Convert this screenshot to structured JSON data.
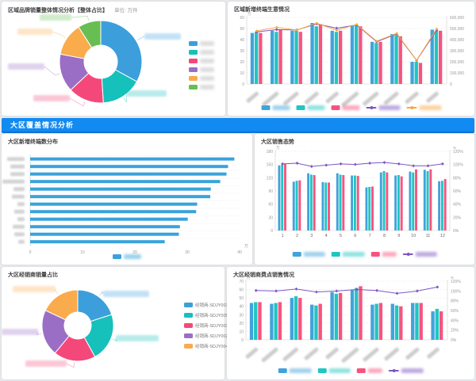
{
  "banner": {
    "title": "大区覆盖情况分析",
    "color": "#118af1"
  },
  "panels": {
    "top_left": {
      "title": "区域品牌销量整体情况分析【整体占比】",
      "unit": "单位: 万件"
    },
    "top_right": {
      "title": "区域新增终端生意情况"
    },
    "mid_left": {
      "title": "大区新增终端数分布"
    },
    "mid_right": {
      "title": "大区销售态势"
    },
    "bottom_left": {
      "title": "大区经销商销量占比"
    },
    "bottom_right": {
      "title": "大区经销商费点销售情况"
    }
  },
  "chart_data": [
    {
      "type": "pie",
      "panel": "top_left",
      "title": "区域品牌销量整体情况分析【整体占比】",
      "unit": "万件",
      "inner_radius_ratio": 0.4,
      "legend_position": "right",
      "labels_redacted": true,
      "legend_redacted": true,
      "slices": [
        {
          "label": "",
          "value": 33,
          "color": "#3c9fdb"
        },
        {
          "label": "",
          "value": 16,
          "color": "#16c0bb"
        },
        {
          "label": "",
          "value": 14,
          "color": "#f4487b"
        },
        {
          "label": "",
          "value": 15,
          "color": "#9a6ec5"
        },
        {
          "label": "",
          "value": 13,
          "color": "#faab4c"
        },
        {
          "label": "",
          "value": 9,
          "color": "#68be52"
        }
      ]
    },
    {
      "type": "bar-line",
      "panel": "top_right",
      "title": "区域新增终端生意情况",
      "categories": [
        "",
        "",
        "",
        "",
        "",
        "",
        "",
        "",
        "",
        ""
      ],
      "categories_redacted": true,
      "legend_redacted": true,
      "left_axis": {
        "min": 0,
        "max": 60,
        "step": 10,
        "unit": "万"
      },
      "right_axis": {
        "min": 0,
        "max": 600000,
        "step": 100000,
        "format": "number"
      },
      "bar_series": [
        {
          "name": "新增家数",
          "color": "#41a3dc",
          "values": [
            46,
            48,
            48,
            55,
            48,
            53,
            38,
            45,
            20,
            49
          ]
        },
        {
          "name": "动销家数",
          "color": "#1fc6c2",
          "values": [
            47,
            47,
            48,
            52,
            47,
            53,
            37,
            44,
            20,
            48
          ]
        },
        {
          "name": "上柜家数",
          "color": "#f8537f",
          "values": [
            46,
            49,
            47,
            54,
            48,
            52,
            38,
            43,
            19,
            48
          ]
        }
      ],
      "line_series": [
        {
          "name": "日均销售额",
          "color": "#7e57c2",
          "axis": "right",
          "marker": "diamond",
          "values": [
            470000,
            490000,
            487000,
            542000,
            503000,
            532000,
            381000,
            451000,
            212000,
            485000
          ]
        },
        {
          "name": "月均销售额",
          "color": "#fba73f",
          "axis": "right",
          "marker": "circle",
          "values": [
            479000,
            511000,
            486000,
            548000,
            484000,
            537000,
            386000,
            456000,
            214000,
            497000
          ]
        }
      ]
    },
    {
      "type": "hbar",
      "panel": "mid_left",
      "title": "大区新增终端数分布",
      "categories": [
        "",
        "",
        "",
        "",
        "",
        "",
        "",
        "",
        "",
        "",
        "",
        ""
      ],
      "categories_redacted": true,
      "legend_redacted": true,
      "x_axis": {
        "min": 0,
        "max": 40,
        "step": 10,
        "unit": "万"
      },
      "series": [
        {
          "name": "新增终端",
          "color": "#38a3dc",
          "values": [
            39,
            37.8,
            37.5,
            36.3,
            34.5,
            34.4,
            31.9,
            31.7,
            30.1,
            28.6,
            28.4,
            25.7
          ]
        }
      ]
    },
    {
      "type": "bar-line",
      "panel": "mid_right",
      "title": "大区销售态势",
      "categories": [
        "1",
        "2",
        "3",
        "4",
        "5",
        "6",
        "7",
        "8",
        "9",
        "10",
        "11",
        "12"
      ],
      "categories_redacted": false,
      "legend_redacted": true,
      "left_axis": {
        "min": 0,
        "max": 180,
        "step": 30,
        "unit": "万"
      },
      "right_axis": {
        "min": 0,
        "max": 120,
        "step": 20,
        "format": "percent",
        "unit": "%"
      },
      "bar_series": [
        {
          "name": "目标销售额",
          "color": "#41a3dc",
          "values": [
            148,
            111,
            130,
            110,
            130,
            125,
            98,
            132,
            125,
            134,
            138,
            112
          ]
        },
        {
          "name": "实际销售额",
          "color": "#1fc6c2",
          "values": [
            150,
            113,
            127,
            109,
            127,
            125,
            99,
            135,
            126,
            132,
            135,
            113
          ]
        },
        {
          "name": "环比额",
          "color": "#f8537f",
          "values": [
            152,
            114,
            126,
            109,
            126,
            124,
            100,
            132,
            123,
            139,
            139,
            117
          ]
        }
      ],
      "line_series": [
        {
          "name": "销售达成率",
          "color": "#7e57c2",
          "axis": "right",
          "marker": "diamond",
          "values": [
            101,
            102,
            97,
            99,
            101,
            100,
            102,
            103,
            101,
            98,
            98,
            101
          ]
        }
      ]
    },
    {
      "type": "pie",
      "panel": "bottom_left",
      "title": "大区经销商销量占比",
      "inner_radius_ratio": 0.38,
      "legend_position": "right",
      "labels_redacted": true,
      "legend_redacted": false,
      "slices": [
        {
          "label": "经销商-SDJY001",
          "value": 20,
          "color": "#3c9fdb"
        },
        {
          "label": "经销商-SDJY005",
          "value": 22,
          "color": "#16c0bb"
        },
        {
          "label": "经销商-SDJY003",
          "value": 19,
          "color": "#f4487b"
        },
        {
          "label": "经销商-SDJY002",
          "value": 21,
          "color": "#9a6ec5"
        },
        {
          "label": "经销商-SDJY004",
          "value": 18,
          "color": "#faab4c"
        }
      ]
    },
    {
      "type": "bar-line",
      "panel": "bottom_right",
      "title": "大区经销商费点销售情况",
      "categories": [
        "",
        "",
        "",
        "",
        "",
        "",
        "",
        "",
        "",
        ""
      ],
      "categories_redacted": true,
      "legend_redacted": true,
      "left_axis": {
        "min": 0,
        "max": 70,
        "step": 10,
        "unit": "万"
      },
      "right_axis": {
        "min": 0,
        "max": 120,
        "step": 20,
        "format": "percent",
        "unit": "%"
      },
      "bar_series": [
        {
          "name": "目标销售额",
          "color": "#41a3dc",
          "values": [
            44,
            43,
            50,
            42,
            57,
            60,
            42,
            43,
            44,
            34
          ]
        },
        {
          "name": "实际销售额",
          "color": "#1fc6c2",
          "values": [
            45,
            44,
            52,
            41,
            55,
            62,
            43,
            41,
            44,
            37
          ]
        },
        {
          "name": "环比额",
          "color": "#f8537f",
          "values": [
            45,
            45,
            50,
            43,
            56,
            64,
            44,
            40,
            44,
            34
          ]
        }
      ],
      "line_series": [
        {
          "name": "销售达成率",
          "color": "#7e57c2",
          "axis": "right",
          "marker": "diamond",
          "values": [
            101,
            100,
            104,
            98,
            100,
            103,
            101,
            95,
            100,
            108
          ]
        }
      ]
    }
  ]
}
